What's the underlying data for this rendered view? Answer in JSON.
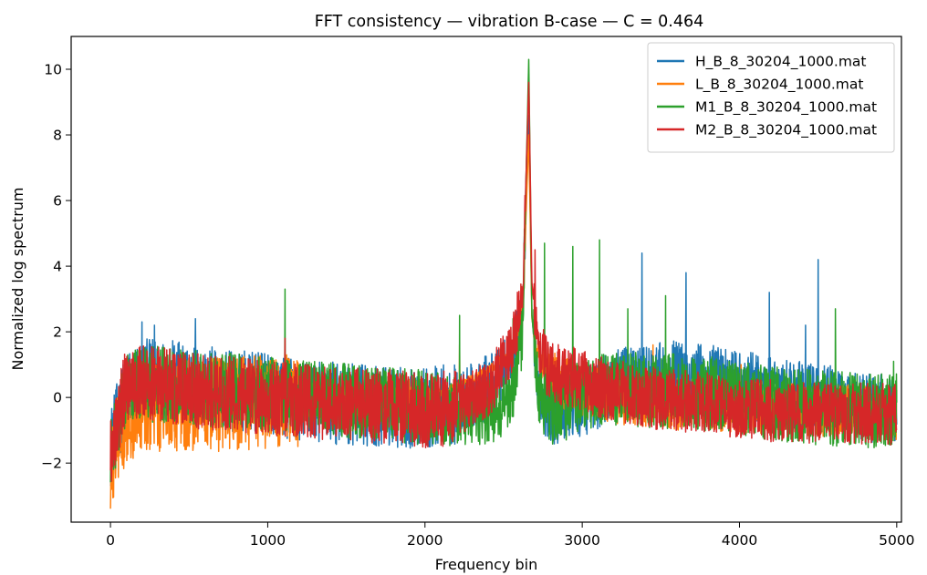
{
  "chart_data": {
    "type": "line",
    "title": "FFT consistency — vibration B-case — C = 0.464",
    "xlabel": "Frequency bin",
    "ylabel": "Normalized log spectrum",
    "xlim": [
      -250,
      5030
    ],
    "ylim": [
      -3.8,
      11.0
    ],
    "xticks": [
      0,
      1000,
      2000,
      3000,
      4000,
      5000
    ],
    "xtick_labels": [
      "0",
      "1000",
      "2000",
      "3000",
      "4000",
      "5000"
    ],
    "yticks": [
      -2,
      0,
      2,
      4,
      6,
      8,
      10
    ],
    "ytick_labels": [
      "−2",
      "0",
      "2",
      "4",
      "6",
      "8",
      "10"
    ],
    "grid": false,
    "legend_position": "top-right",
    "series": [
      {
        "name": "H_B_8_30204_1000.mat",
        "color": "#1f77b4",
        "x": [
          0,
          100,
          200,
          300,
          500,
          800,
          1000,
          1200,
          1500,
          1800,
          2000,
          2200,
          2400,
          2550,
          2620,
          2660,
          2680,
          2720,
          2800,
          3000,
          3200,
          3400,
          3600,
          3800,
          4000,
          4200,
          4500,
          4800,
          5000
        ],
        "y": [
          -1.5,
          0.2,
          0.5,
          0.6,
          0.4,
          0.2,
          0.1,
          -0.1,
          -0.2,
          -0.3,
          -0.3,
          -0.2,
          0.3,
          1.2,
          2.5,
          8.6,
          2.5,
          0.2,
          -0.4,
          -0.2,
          0.4,
          0.6,
          0.7,
          0.6,
          0.4,
          0.2,
          0.0,
          -0.3,
          -0.4
        ],
        "peaks": [
          [
            200,
            2.3
          ],
          [
            280,
            2.2
          ],
          [
            540,
            2.4
          ],
          [
            3380,
            4.4
          ],
          [
            3660,
            3.8
          ],
          [
            4500,
            4.2
          ],
          [
            4190,
            3.2
          ],
          [
            4420,
            2.2
          ]
        ]
      },
      {
        "name": "L_B_8_30204_1000.mat",
        "color": "#ff7f0e",
        "x": [
          0,
          100,
          200,
          300,
          500,
          800,
          1000,
          1200,
          1500,
          1800,
          2000,
          2200,
          2400,
          2550,
          2620,
          2660,
          2680,
          2720,
          2800,
          3000,
          3200,
          3400,
          3600,
          3800,
          4000,
          4200,
          4500,
          4800,
          5000
        ],
        "y": [
          -2.2,
          -0.5,
          -0.3,
          -0.2,
          -0.2,
          -0.2,
          -0.1,
          -0.1,
          -0.1,
          0.0,
          0.0,
          0.3,
          0.8,
          1.4,
          2.4,
          8.0,
          2.4,
          1.2,
          0.6,
          0.2,
          0.0,
          -0.1,
          -0.2,
          -0.2,
          -0.3,
          -0.3,
          -0.4,
          -0.4,
          -0.5
        ],
        "peaks": [
          [
            2220,
            1.6
          ],
          [
            3450,
            1.6
          ],
          [
            4010,
            1.0
          ]
        ]
      },
      {
        "name": "M1_B_8_30204_1000.mat",
        "color": "#2ca02c",
        "x": [
          0,
          100,
          200,
          300,
          500,
          800,
          1000,
          1200,
          1500,
          1800,
          2000,
          2200,
          2400,
          2550,
          2620,
          2660,
          2680,
          2720,
          2800,
          3000,
          3200,
          3400,
          3600,
          3800,
          4000,
          4200,
          4500,
          4800,
          5000
        ],
        "y": [
          -1.8,
          0.3,
          0.4,
          0.4,
          0.3,
          0.2,
          0.1,
          0.0,
          -0.1,
          -0.2,
          -0.3,
          -0.5,
          -0.5,
          0.0,
          2.0,
          10.3,
          2.5,
          0.2,
          -0.3,
          0.0,
          0.3,
          0.2,
          0.2,
          0.1,
          0.0,
          -0.2,
          -0.3,
          -0.4,
          -0.4
        ],
        "peaks": [
          [
            1110,
            3.3
          ],
          [
            2220,
            2.5
          ],
          [
            2560,
            2.4
          ],
          [
            2760,
            4.7
          ],
          [
            2940,
            4.6
          ],
          [
            3110,
            4.8
          ],
          [
            3290,
            2.7
          ],
          [
            3530,
            3.1
          ],
          [
            4610,
            2.7
          ],
          [
            4980,
            1.1
          ]
        ]
      },
      {
        "name": "M2_B_8_30204_1000.mat",
        "color": "#d62728",
        "x": [
          0,
          100,
          200,
          300,
          500,
          800,
          1000,
          1200,
          1500,
          1800,
          2000,
          2200,
          2400,
          2550,
          2620,
          2660,
          2680,
          2720,
          2800,
          3000,
          3200,
          3400,
          3600,
          3800,
          4000,
          4200,
          4500,
          4800,
          5000
        ],
        "y": [
          -1.6,
          0.4,
          0.5,
          0.4,
          0.2,
          0.1,
          0.0,
          -0.1,
          -0.2,
          -0.3,
          -0.4,
          -0.3,
          0.2,
          1.5,
          3.0,
          9.6,
          3.5,
          1.5,
          0.8,
          0.5,
          0.2,
          0.0,
          -0.1,
          -0.2,
          -0.3,
          -0.4,
          -0.5,
          -0.5,
          -0.5
        ],
        "peaks": [
          [
            2630,
            4.7
          ],
          [
            2700,
            4.5
          ],
          [
            1110,
            1.8
          ]
        ]
      }
    ]
  }
}
